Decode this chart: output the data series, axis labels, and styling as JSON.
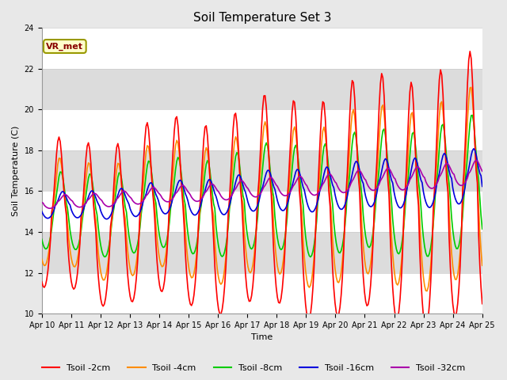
{
  "title": "Soil Temperature Set 3",
  "xlabel": "Time",
  "ylabel": "Soil Temperature (C)",
  "ylim": [
    10,
    24
  ],
  "yticks": [
    10,
    12,
    14,
    16,
    18,
    20,
    22,
    24
  ],
  "x_labels": [
    "Apr 10",
    "Apr 11",
    "Apr 12",
    "Apr 13",
    "Apr 14",
    "Apr 15",
    "Apr 16",
    "Apr 17",
    "Apr 18",
    "Apr 19",
    "Apr 20",
    "Apr 21",
    "Apr 22",
    "Apr 23",
    "Apr 24",
    "Apr 25"
  ],
  "colors": {
    "Tsoil -2cm": "#FF0000",
    "Tsoil -4cm": "#FF8C00",
    "Tsoil -8cm": "#00CC00",
    "Tsoil -16cm": "#0000DD",
    "Tsoil -32cm": "#AA00AA"
  },
  "fig_bg": "#E8E8E8",
  "plot_bg": "#E8E8E8",
  "band_colors": [
    "#FFFFFF",
    "#DCDCDC"
  ],
  "grid_color": "#CCCCCC",
  "annotation": {
    "text": "VR_met",
    "facecolor": "#FFFFCC",
    "edgecolor": "#999900",
    "textcolor": "#880000",
    "fontsize": 8
  },
  "title_fontsize": 11,
  "axis_fontsize": 8,
  "tick_fontsize": 7,
  "legend_fontsize": 8,
  "linewidth": 1.2
}
